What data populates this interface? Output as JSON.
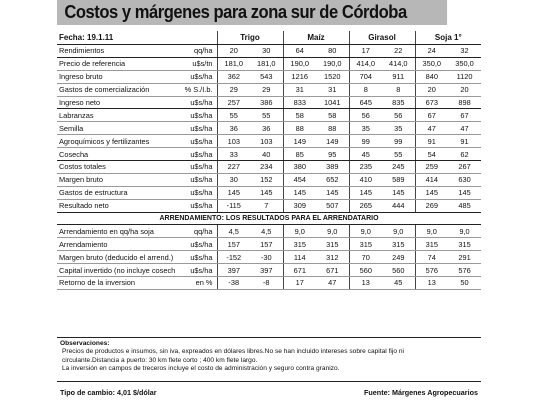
{
  "title": "Costos y márgenes para zona sur de Córdoba",
  "header": {
    "date": "Fecha: 19.1.11",
    "crops": [
      "Trigo",
      "Maíz",
      "Girasol",
      "Soja 1°"
    ]
  },
  "rows_a": [
    {
      "label": "Rendimientos",
      "unit": "qq/ha",
      "values": [
        "20",
        "30",
        "64",
        "80",
        "17",
        "22",
        "24",
        "32"
      ]
    },
    {
      "label": "Precio de referencia",
      "unit": "u$s/tn",
      "values": [
        "181,0",
        "181,0",
        "190,0",
        "190,0",
        "414,0",
        "414,0",
        "350,0",
        "350,0"
      ]
    },
    {
      "label": "Ingreso bruto",
      "unit": "u$s/ha",
      "values": [
        "362",
        "543",
        "1216",
        "1520",
        "704",
        "911",
        "840",
        "1120"
      ]
    },
    {
      "label": "Gastos de comercialización",
      "unit": "% S./I.b.",
      "values": [
        "29",
        "29",
        "31",
        "31",
        "8",
        "8",
        "20",
        "20"
      ]
    },
    {
      "label": "Ingreso neto",
      "unit": "u$s/ha",
      "values": [
        "257",
        "386",
        "833",
        "1041",
        "645",
        "835",
        "673",
        "898"
      ]
    },
    {
      "label": "Labranzas",
      "unit": "u$s/ha",
      "values": [
        "55",
        "55",
        "58",
        "58",
        "56",
        "56",
        "67",
        "67"
      ]
    },
    {
      "label": "Semilla",
      "unit": "u$s/ha",
      "values": [
        "36",
        "36",
        "88",
        "88",
        "35",
        "35",
        "47",
        "47"
      ]
    },
    {
      "label": "Agroquímicos y fertilizantes",
      "unit": "u$s/ha",
      "values": [
        "103",
        "103",
        "149",
        "149",
        "99",
        "99",
        "91",
        "91"
      ]
    },
    {
      "label": "Cosecha",
      "unit": "u$s/ha",
      "values": [
        "33",
        "40",
        "85",
        "95",
        "45",
        "55",
        "54",
        "62"
      ]
    },
    {
      "label": "Costos totales",
      "unit": "u$s/ha",
      "values": [
        "227",
        "234",
        "380",
        "389",
        "235",
        "245",
        "259",
        "267"
      ]
    },
    {
      "label": "Margen bruto",
      "unit": "u$s/ha",
      "values": [
        "30",
        "152",
        "454",
        "652",
        "410",
        "589",
        "414",
        "630"
      ]
    },
    {
      "label": "Gastos de estructura",
      "unit": "u$s/ha",
      "values": [
        "145",
        "145",
        "145",
        "145",
        "145",
        "145",
        "145",
        "145"
      ]
    },
    {
      "label": "Resultado neto",
      "unit": "u$s/ha",
      "values": [
        "-115",
        "7",
        "309",
        "507",
        "265",
        "444",
        "269",
        "485"
      ]
    }
  ],
  "section_title": "ARRENDAMIENTO: LOS RESULTADOS PARA EL ARRENDATARIO",
  "rows_b": [
    {
      "label": "Arrendamiento en qq/ha soja",
      "unit": "qq/ha",
      "values": [
        "4,5",
        "4,5",
        "9,0",
        "9,0",
        "9,0",
        "9,0",
        "9,0",
        "9,0"
      ]
    },
    {
      "label": "Arrendamiento",
      "unit": "u$s/ha",
      "values": [
        "157",
        "157",
        "315",
        "315",
        "315",
        "315",
        "315",
        "315"
      ]
    },
    {
      "label": "Margen bruto (deducido el arrend.)",
      "unit": "u$s/ha",
      "values": [
        "-152",
        "-30",
        "114",
        "312",
        "70",
        "249",
        "74",
        "291"
      ]
    },
    {
      "label": "Capital invertido (no incluye cosecha)",
      "unit": "u$s/ha",
      "values": [
        "397",
        "397",
        "671",
        "671",
        "560",
        "560",
        "576",
        "576"
      ]
    },
    {
      "label": "Retorno de la inversion",
      "unit": "en %",
      "values": [
        "-38",
        "-8",
        "17",
        "47",
        "13",
        "45",
        "13",
        "50"
      ]
    }
  ],
  "observations": {
    "heading": "Observaciones:",
    "lines": [
      "Precios de productos e insumos, sin iva, expreados en dólares libres.No se han incluido intereses sobre capital fijo ni",
      "circulante.Distancia a puerto: 30 km  flete corto ; 400 km  flete largo.",
      "La inversión en campos de treceros incluye el costo de administración y seguro contra granizo."
    ]
  },
  "footer": {
    "exchange": "Tipo de cambio: 4,01  $/dólar",
    "source": "Fuente: Márgenes Agropecuarios"
  }
}
